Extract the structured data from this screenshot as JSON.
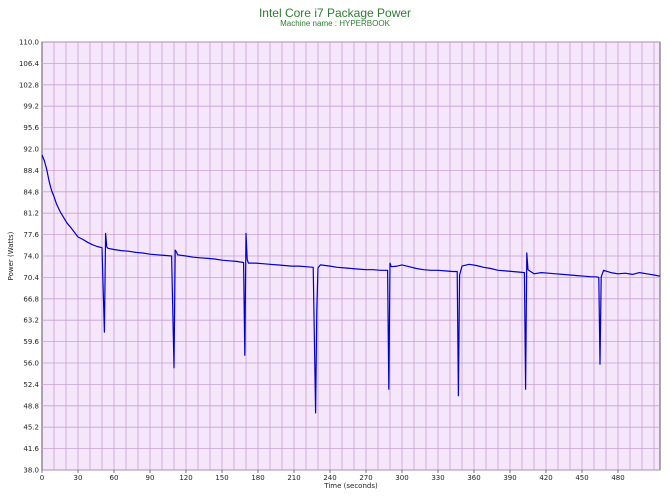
{
  "chart_data": {
    "type": "line",
    "title": "Intel Core i7 Package Power",
    "subtitle": "Machine name : HYPERBOOK",
    "xlabel": "Time (seconds)",
    "ylabel": "Power (Watts)",
    "xlim": [
      0,
      515
    ],
    "ylim": [
      38.0,
      110.0
    ],
    "x_ticks": [
      "0",
      "30",
      "60",
      "90",
      "120",
      "150",
      "180",
      "210",
      "240",
      "270",
      "300",
      "330",
      "360",
      "390",
      "420",
      "450",
      "480"
    ],
    "y_ticks": [
      "38.0",
      "41.6",
      "45.2",
      "48.8",
      "52.4",
      "56.0",
      "59.6",
      "63.2",
      "66.8",
      "70.4",
      "74.0",
      "77.6",
      "81.2",
      "84.8",
      "88.4",
      "92.0",
      "95.6",
      "99.2",
      "102.8",
      "106.4",
      "110.0"
    ],
    "grid": true,
    "series": [
      {
        "color": "#0000cc",
        "x": [
          0,
          2,
          4,
          6,
          8,
          10,
          12,
          15,
          18,
          21,
          24,
          27,
          30,
          34,
          38,
          42,
          46,
          50,
          52,
          53,
          54,
          55,
          60,
          66,
          72,
          78,
          84,
          90,
          96,
          102,
          108,
          110,
          111,
          112,
          113,
          120,
          126,
          132,
          138,
          144,
          150,
          156,
          162,
          168,
          169,
          170,
          171,
          172,
          178,
          184,
          190,
          196,
          202,
          208,
          214,
          220,
          226,
          228,
          229,
          230,
          232,
          240,
          246,
          252,
          258,
          264,
          270,
          276,
          282,
          288,
          289,
          290,
          291,
          296,
          300,
          306,
          312,
          318,
          324,
          330,
          336,
          342,
          346,
          347,
          348,
          350,
          356,
          362,
          368,
          374,
          380,
          386,
          392,
          398,
          402,
          403,
          404,
          405,
          410,
          416,
          422,
          428,
          434,
          440,
          446,
          452,
          458,
          462,
          464,
          465,
          466,
          468,
          474,
          480,
          486,
          492,
          498,
          504,
          510,
          515
        ],
        "y": [
          91.0,
          90.0,
          88.5,
          86.5,
          85.0,
          84.0,
          82.8,
          81.5,
          80.5,
          79.5,
          78.8,
          78.0,
          77.2,
          76.8,
          76.3,
          75.9,
          75.6,
          75.4,
          61.2,
          77.8,
          75.5,
          75.3,
          75.1,
          74.9,
          74.8,
          74.6,
          74.5,
          74.3,
          74.2,
          74.1,
          74.0,
          55.2,
          75.0,
          74.7,
          74.2,
          74.0,
          73.8,
          73.7,
          73.6,
          73.5,
          73.3,
          73.2,
          73.1,
          72.9,
          57.3,
          77.8,
          73.4,
          72.8,
          72.8,
          72.7,
          72.6,
          72.5,
          72.4,
          72.3,
          72.3,
          72.2,
          72.1,
          47.6,
          65.0,
          72.0,
          72.5,
          72.3,
          72.1,
          72.0,
          71.9,
          71.8,
          71.7,
          71.7,
          71.6,
          71.6,
          51.6,
          72.8,
          72.2,
          72.3,
          72.5,
          72.2,
          71.9,
          71.7,
          71.6,
          71.6,
          71.5,
          71.4,
          71.4,
          50.5,
          70.8,
          72.3,
          72.6,
          72.4,
          72.1,
          71.9,
          71.6,
          71.5,
          71.4,
          71.3,
          71.2,
          51.6,
          74.5,
          71.7,
          71.0,
          71.2,
          71.1,
          71.0,
          70.9,
          70.8,
          70.7,
          70.6,
          70.5,
          70.5,
          70.4,
          55.8,
          70.5,
          71.6,
          71.2,
          71.0,
          71.1,
          70.9,
          71.2,
          71.0,
          70.8,
          70.6
        ]
      }
    ]
  }
}
